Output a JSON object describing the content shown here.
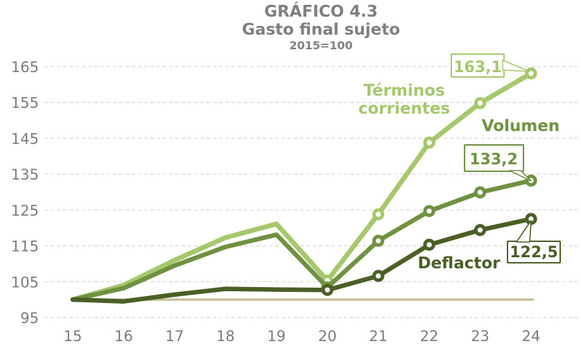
{
  "title": {
    "line1": "GRÁFICO 4.3",
    "line2": "Gasto final sujeto",
    "line3": "2015=100"
  },
  "colors": {
    "background": "#ffffff",
    "title_text": "#7f7f7f",
    "axis_text": "#7b7b7b",
    "gridline": "#d8d8d8",
    "baseline": "#c9bf9b",
    "terminos_corrientes": "#a6c86d",
    "volumen": "#6f9240",
    "deflactor": "#4a5f26"
  },
  "chart_data": {
    "type": "line",
    "title": "GRÁFICO 4.3",
    "subtitle": "Gasto final sujeto",
    "index_note": "2015=100",
    "x_labels": [
      "15",
      "16",
      "17",
      "18",
      "19",
      "20",
      "21",
      "22",
      "23",
      "24"
    ],
    "xlabel": "",
    "ylabel": "",
    "ylim": [
      95,
      165
    ],
    "yticks": [
      95,
      105,
      115,
      125,
      135,
      145,
      155,
      165
    ],
    "grid": "dashed-horizontal",
    "legend_position": "inline-labels",
    "baseline": {
      "value": 100,
      "label": "2015=100 reference"
    },
    "markers_start_index": 5,
    "series": [
      {
        "name": "Términos corrientes",
        "label_lines": [
          "Términos",
          "corrientes"
        ],
        "color_key": "terminos_corrientes",
        "values": [
          100,
          104,
          111,
          117.3,
          121.1,
          105.3,
          123.8,
          143.8,
          154.8,
          163.1
        ],
        "end_label": "163,1"
      },
      {
        "name": "Volumen",
        "label_lines": [
          "Volumen"
        ],
        "color_key": "volumen",
        "values": [
          100,
          103.2,
          109.5,
          114.7,
          118.1,
          103.4,
          116.4,
          124.7,
          129.9,
          133.2
        ],
        "end_label": "133,2"
      },
      {
        "name": "Deflactor",
        "label_lines": [
          "Deflactor"
        ],
        "color_key": "deflactor",
        "values": [
          100,
          99.5,
          101.4,
          103,
          102.8,
          102.7,
          106.6,
          115.3,
          119.4,
          122.5
        ],
        "end_label": "122,5"
      }
    ]
  }
}
